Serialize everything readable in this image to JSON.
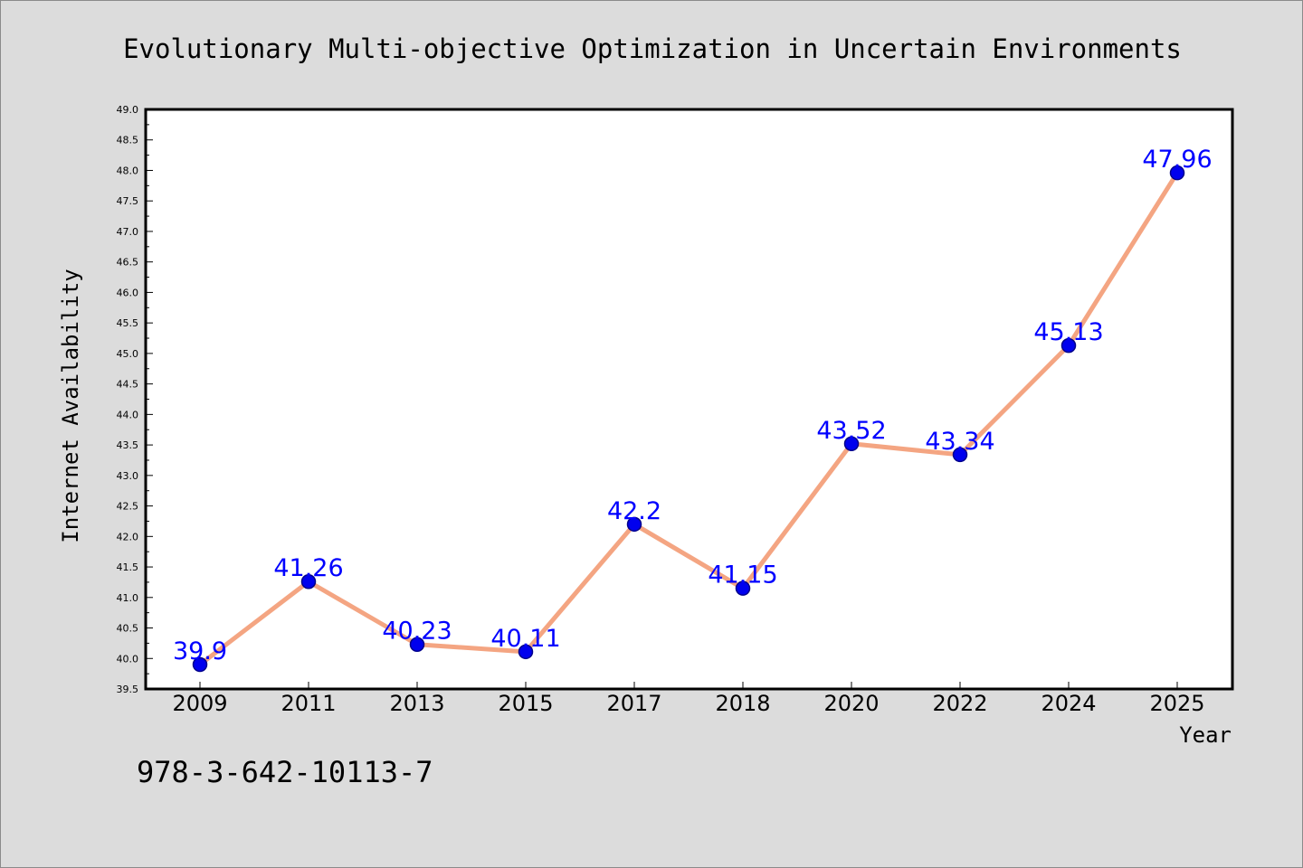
{
  "page": {
    "footer_text": "978-3-642-10113-7"
  },
  "chart_data": {
    "type": "line",
    "title": "Evolutionary Multi-objective Optimization in Uncertain Environments",
    "xlabel": "Year",
    "ylabel": "Internet Availability",
    "categories": [
      "2009",
      "2011",
      "2013",
      "2015",
      "2017",
      "2018",
      "2020",
      "2022",
      "2024",
      "2025"
    ],
    "values": [
      39.9,
      41.26,
      40.23,
      40.11,
      42.2,
      41.15,
      43.52,
      43.34,
      45.13,
      47.96
    ],
    "data_labels": [
      "39.9",
      "41.26",
      "40.23",
      "40.11",
      "42.2",
      "41.15",
      "43.52",
      "43.34",
      "45.13",
      "47.96"
    ],
    "ylim": [
      39.5,
      49.0
    ],
    "y_ticks": [
      "39.5",
      "40.0",
      "40.5",
      "41.0",
      "41.5",
      "42.0",
      "42.5",
      "43.0",
      "43.5",
      "44.0",
      "44.5",
      "45.0",
      "45.5",
      "46.0",
      "46.5",
      "47.0",
      "47.5",
      "48.0",
      "48.5",
      "49.0"
    ],
    "grid": false,
    "legend": "none",
    "colors": {
      "line": "#f4a582",
      "marker_fill": "#0000ee",
      "marker_edge": "#00008b",
      "data_label": "#0000ff",
      "plot_background": "#ffffff",
      "page_background": "#dcdcdc",
      "axis": "#000000"
    }
  }
}
